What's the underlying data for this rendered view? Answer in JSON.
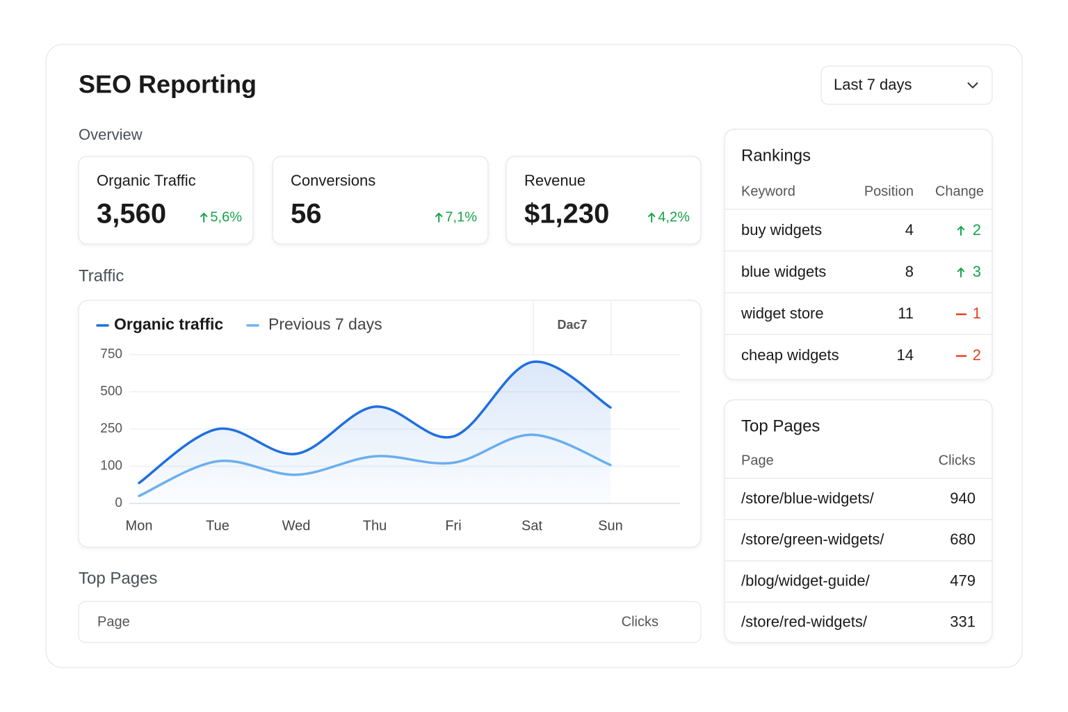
{
  "header": {
    "title": "SEO Reporting",
    "range": "Last 7 days"
  },
  "overview": {
    "label": "Overview",
    "kpis": [
      {
        "label": "Organic Traffic",
        "value": "3,560",
        "change": "5,6%"
      },
      {
        "label": "Conversions",
        "value": "56",
        "change": "7,1%"
      },
      {
        "label": "Revenue",
        "value": "$1,230",
        "change": "4,2%"
      }
    ]
  },
  "traffic": {
    "label": "Traffic",
    "chart_data": {
      "type": "line",
      "annotation": "Dac7",
      "categories": [
        "Mon",
        "Tue",
        "Wed",
        "Thu",
        "Fri",
        "Sat",
        "Sun"
      ],
      "series": [
        {
          "name": "Organic traffic",
          "color": "#1f6fde",
          "area": true,
          "values": [
            55,
            250,
            150,
            400,
            220,
            700,
            395
          ]
        },
        {
          "name": "Previous 7 days",
          "color": "#6fb3ef",
          "area": false,
          "values": [
            20,
            120,
            77,
            140,
            114,
            227,
            105
          ]
        }
      ],
      "ylim": [
        0,
        750
      ],
      "yticks": [
        0,
        100,
        250,
        500,
        750
      ],
      "grid": true
    }
  },
  "bottom_pages": {
    "label": "Top Pages",
    "columns": [
      "Page",
      "Clicks"
    ]
  },
  "rankings": {
    "title": "Rankings",
    "columns": [
      "Keyword",
      "Position",
      "Change"
    ],
    "rows": [
      {
        "keyword": "buy widgets",
        "position": 4,
        "change": 2,
        "direction": "up"
      },
      {
        "keyword": "blue widgets",
        "position": 8,
        "change": 3,
        "direction": "up"
      },
      {
        "keyword": "widget store",
        "position": 11,
        "change": 1,
        "direction": "down"
      },
      {
        "keyword": "cheap widgets",
        "position": 14,
        "change": 2,
        "direction": "down"
      }
    ]
  },
  "top_pages": {
    "title": "Top Pages",
    "columns": [
      "Page",
      "Clicks"
    ],
    "rows": [
      {
        "page": "/store/blue-widgets/",
        "clicks": 940
      },
      {
        "page": "/store/green-widgets/",
        "clicks": 680
      },
      {
        "page": "/blog/widget-guide/",
        "clicks": 479
      },
      {
        "page": "/store/red-widgets/",
        "clicks": 331
      }
    ]
  }
}
